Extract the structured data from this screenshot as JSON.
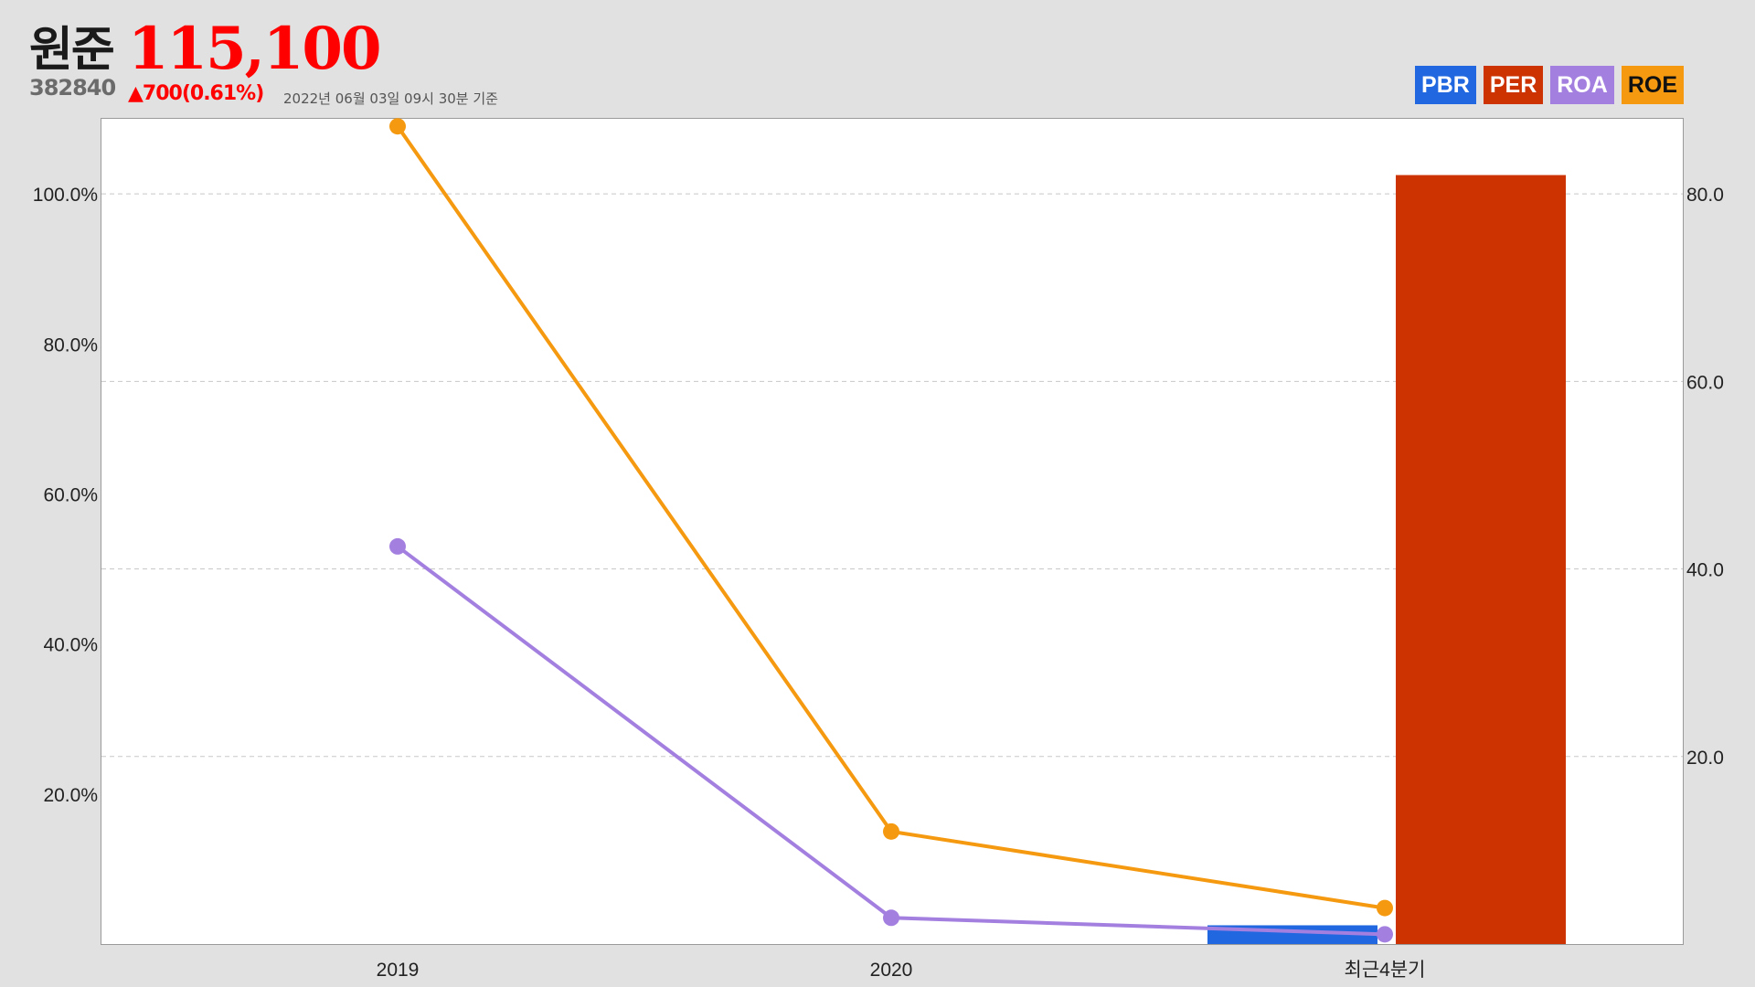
{
  "stock": {
    "name": "원준",
    "price": "115,100",
    "code": "382840",
    "change": "▲700(0.61%)",
    "as_of": "2022년 06월 03일 09시 30분 기준"
  },
  "legend": [
    {
      "label": "PBR",
      "color": "#2168e0"
    },
    {
      "label": "PER",
      "color": "#cc3300"
    },
    {
      "label": "ROA",
      "color": "#a37fe0"
    },
    {
      "label": "ROE",
      "color": "#f59a10"
    }
  ],
  "chart_data": {
    "type": "bar",
    "categories": [
      "2019",
      "2020",
      "최근4분기"
    ],
    "left_axis": {
      "ticks": [
        "20.0%",
        "40.0%",
        "60.0%",
        "80.0%",
        "100.0%"
      ],
      "values": [
        20,
        40,
        60,
        80,
        100
      ],
      "range": [
        0,
        110
      ]
    },
    "right_axis": {
      "ticks": [
        "20.0",
        "40.0",
        "60.0",
        "80.0"
      ],
      "values": [
        20,
        40,
        60,
        80
      ],
      "range": [
        0,
        88
      ]
    },
    "series": [
      {
        "name": "PBR",
        "kind": "bar",
        "axis": "right",
        "color": "#2168e0",
        "values": [
          null,
          null,
          2
        ]
      },
      {
        "name": "PER",
        "kind": "bar",
        "axis": "right",
        "color": "#cc3300",
        "values": [
          null,
          null,
          82
        ]
      },
      {
        "name": "ROA",
        "kind": "line",
        "axis": "left",
        "color": "#a37fe0",
        "values": [
          53,
          3.5,
          1.3
        ]
      },
      {
        "name": "ROE",
        "kind": "line",
        "axis": "left",
        "color": "#f59a10",
        "values": [
          109,
          15,
          4.8
        ]
      }
    ],
    "grid": true,
    "legend_position": "top-right"
  }
}
